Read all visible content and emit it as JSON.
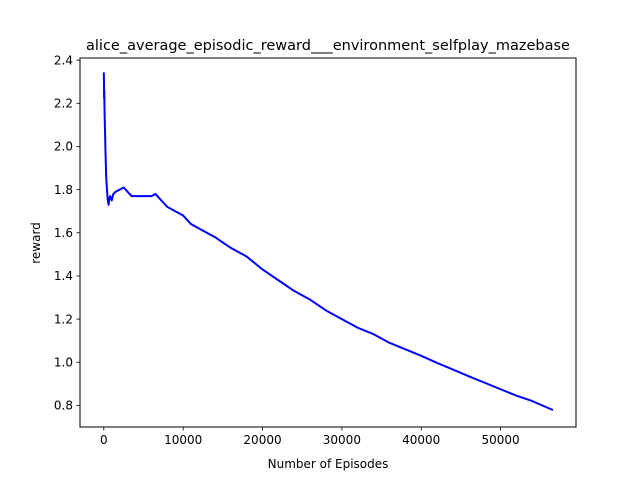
{
  "chart_data": {
    "type": "line",
    "title": "alice_average_episodic_reward___environment_selfplay_mazebase",
    "xlabel": "Number of Episodes",
    "ylabel": "reward",
    "xlim": [
      -3000,
      59500
    ],
    "ylim": [
      0.7,
      2.41
    ],
    "xticks": [
      0,
      10000,
      20000,
      30000,
      40000,
      50000
    ],
    "xtick_labels": [
      "0",
      "10000",
      "20000",
      "30000",
      "40000",
      "50000"
    ],
    "yticks": [
      0.8,
      1.0,
      1.2,
      1.4,
      1.6,
      1.8,
      2.0,
      2.2,
      2.4
    ],
    "ytick_labels": [
      "0.8",
      "1.0",
      "1.2",
      "1.4",
      "1.6",
      "1.8",
      "2.0",
      "2.2",
      "2.4"
    ],
    "grid": false,
    "line_color": "#0000ff",
    "series": [
      {
        "x": [
          0,
          20,
          40,
          60,
          80,
          100,
          150,
          200,
          300,
          400,
          500,
          600,
          700,
          800,
          1000,
          1200,
          1500,
          2000,
          2500,
          3000,
          3500,
          4000,
          5000,
          6000,
          6500,
          7000,
          7500,
          8000,
          9000,
          10000,
          11000,
          12000,
          14000,
          16000,
          18000,
          20000,
          22000,
          24000,
          26000,
          28000,
          30000,
          32000,
          34000,
          36000,
          38000,
          40000,
          42000,
          44000,
          46000,
          48000,
          50000,
          52000,
          54000,
          56500
        ],
        "y": [
          2.34,
          2.3,
          2.22,
          2.26,
          2.2,
          2.15,
          2.08,
          1.99,
          1.86,
          1.8,
          1.75,
          1.73,
          1.76,
          1.77,
          1.75,
          1.78,
          1.79,
          1.8,
          1.81,
          1.79,
          1.77,
          1.77,
          1.77,
          1.77,
          1.78,
          1.76,
          1.74,
          1.72,
          1.7,
          1.68,
          1.64,
          1.62,
          1.58,
          1.53,
          1.49,
          1.43,
          1.38,
          1.33,
          1.29,
          1.24,
          1.2,
          1.16,
          1.13,
          1.09,
          1.06,
          1.03,
          0.997,
          0.966,
          0.935,
          0.905,
          0.875,
          0.845,
          0.82,
          0.78
        ]
      }
    ]
  }
}
